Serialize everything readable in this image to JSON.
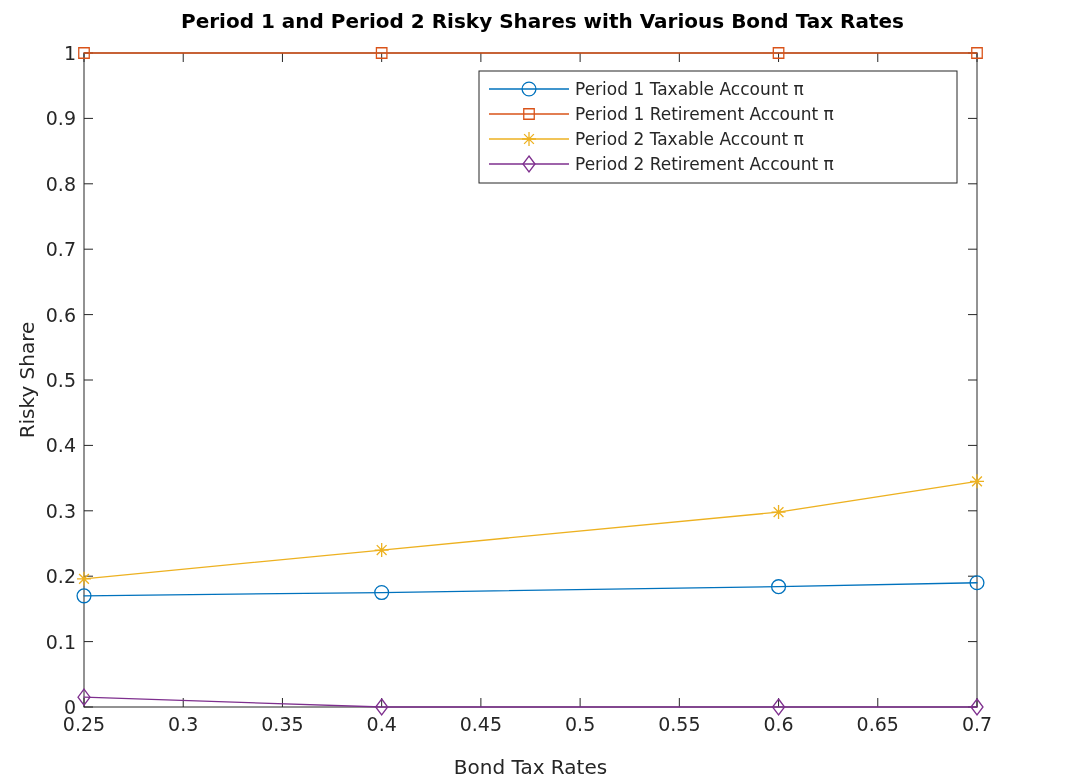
{
  "chart_data": {
    "type": "line",
    "title": "Period 1 and Period 2 Risky Shares with Various Bond Tax Rates",
    "xlabel": "Bond Tax Rates",
    "ylabel": "Risky Share",
    "x": [
      0.25,
      0.4,
      0.6,
      0.7
    ],
    "series": [
      {
        "name": "Period 1 Taxable Account π",
        "color": "#0072bd",
        "marker": "circle",
        "values": [
          0.17,
          0.175,
          0.184,
          0.19
        ]
      },
      {
        "name": "Period 1 Retirement Account π",
        "color": "#d95319",
        "marker": "square",
        "values": [
          1,
          1,
          1,
          1
        ]
      },
      {
        "name": "Period 2 Taxable Account π",
        "color": "#edb120",
        "marker": "cross",
        "values": [
          0.196,
          0.24,
          0.298,
          0.345
        ]
      },
      {
        "name": "Period 2 Retirement Account π",
        "color": "#7e2f8e",
        "marker": "diamond",
        "values": [
          0.015,
          0,
          0,
          0
        ]
      }
    ],
    "xlim": [
      0.25,
      0.7
    ],
    "xticks": [
      0.25,
      0.3,
      0.35,
      0.4,
      0.45,
      0.5,
      0.55,
      0.6,
      0.65,
      0.7
    ],
    "ylim": [
      0,
      1
    ],
    "yticks": [
      0,
      0.1,
      0.2,
      0.3,
      0.4,
      0.5,
      0.6,
      0.7,
      0.8,
      0.9,
      1
    ],
    "grid": false,
    "legend": "top right",
    "line_style": "solid"
  }
}
